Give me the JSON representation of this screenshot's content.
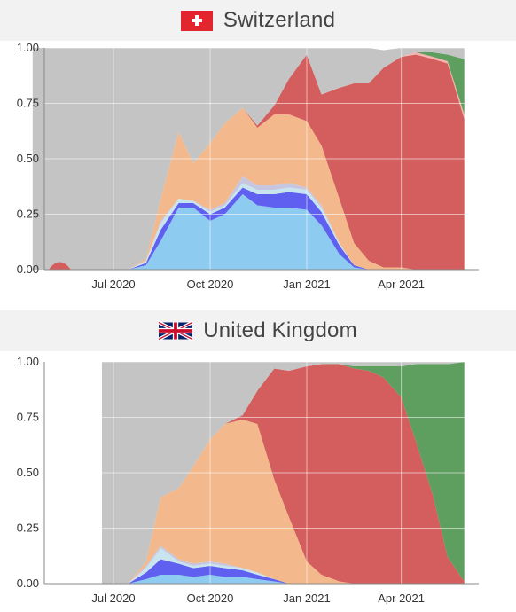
{
  "chart_data": [
    {
      "type": "area",
      "title": "Switzerland",
      "flag": "swiss-flag",
      "xlabel": "",
      "ylabel": "",
      "x": [
        "2020-04-15",
        "2020-05-01",
        "2020-05-15",
        "2020-06-01",
        "2020-06-15",
        "2020-07-01",
        "2020-07-15",
        "2020-08-01",
        "2020-08-15",
        "2020-09-01",
        "2020-09-15",
        "2020-10-01",
        "2020-10-15",
        "2020-11-01",
        "2020-11-15",
        "2020-12-01",
        "2020-12-15",
        "2021-01-01",
        "2021-01-15",
        "2021-02-01",
        "2021-02-15",
        "2021-03-01",
        "2021-03-15",
        "2021-04-01",
        "2021-04-15",
        "2021-05-01",
        "2021-05-15",
        "2021-05-31"
      ],
      "series": [
        {
          "color": "#8ecbf0",
          "values": [
            0.0,
            0.0,
            0.0,
            0.0,
            0.0,
            0.0,
            0.0,
            0.02,
            0.13,
            0.28,
            0.28,
            0.22,
            0.25,
            0.34,
            0.29,
            0.28,
            0.28,
            0.27,
            0.2,
            0.07,
            0.01,
            0.0,
            0.0,
            0.0,
            0.0,
            0.0,
            0.0,
            0.0
          ]
        },
        {
          "color": "#5f5ff0",
          "values": [
            0.0,
            0.0,
            0.0,
            0.0,
            0.0,
            0.0,
            0.0,
            0.01,
            0.05,
            0.02,
            0.02,
            0.03,
            0.03,
            0.03,
            0.05,
            0.06,
            0.07,
            0.07,
            0.06,
            0.04,
            0.01,
            0.0,
            0.0,
            0.0,
            0.0,
            0.0,
            0.0,
            0.0
          ]
        },
        {
          "color": "#c8e4ef",
          "values": [
            0.0,
            0.0,
            0.0,
            0.0,
            0.0,
            0.0,
            0.0,
            0.01,
            0.03,
            0.02,
            0.01,
            0.01,
            0.01,
            0.02,
            0.02,
            0.02,
            0.02,
            0.02,
            0.02,
            0.01,
            0.0,
            0.0,
            0.0,
            0.0,
            0.0,
            0.0,
            0.0,
            0.0
          ]
        },
        {
          "color": "#c6c6e0",
          "values": [
            0.0,
            0.0,
            0.0,
            0.0,
            0.0,
            0.0,
            0.0,
            0.0,
            0.01,
            0.0,
            0.0,
            0.01,
            0.01,
            0.03,
            0.02,
            0.02,
            0.02,
            0.01,
            0.01,
            0.0,
            0.0,
            0.0,
            0.0,
            0.0,
            0.0,
            0.0,
            0.0,
            0.0
          ]
        },
        {
          "color": "#f3b98c",
          "values": [
            0.0,
            0.0,
            0.0,
            0.0,
            0.0,
            0.0,
            0.0,
            0.01,
            0.1,
            0.3,
            0.17,
            0.3,
            0.36,
            0.31,
            0.26,
            0.32,
            0.31,
            0.3,
            0.27,
            0.2,
            0.1,
            0.04,
            0.01,
            0.01,
            0.0,
            0.0,
            0.0,
            0.0
          ]
        },
        {
          "color": "#d45d5e",
          "values": [
            0.0,
            0.0,
            0.0,
            0.0,
            0.0,
            0.0,
            0.0,
            0.0,
            0.0,
            0.0,
            0.0,
            0.0,
            0.0,
            0.0,
            0.01,
            0.04,
            0.16,
            0.3,
            0.23,
            0.5,
            0.72,
            0.8,
            0.9,
            0.95,
            0.97,
            0.95,
            0.93,
            0.68
          ]
        },
        {
          "color": "#f6b3ae",
          "values": [
            0.0,
            0.0,
            0.0,
            0.0,
            0.0,
            0.0,
            0.0,
            0.0,
            0.0,
            0.0,
            0.0,
            0.0,
            0.0,
            0.0,
            0.0,
            0.0,
            0.0,
            0.0,
            0.0,
            0.0,
            0.0,
            0.0,
            0.0,
            0.0,
            0.01,
            0.01,
            0.01,
            0.02
          ]
        },
        {
          "color": "#5e9e5e",
          "values": [
            0.0,
            0.0,
            0.0,
            0.0,
            0.0,
            0.0,
            0.0,
            0.0,
            0.0,
            0.0,
            0.0,
            0.0,
            0.0,
            0.0,
            0.0,
            0.0,
            0.0,
            0.0,
            0.0,
            0.0,
            0.0,
            0.0,
            0.0,
            0.0,
            0.0,
            0.02,
            0.03,
            0.25
          ]
        },
        {
          "color": "#c4c4c4",
          "values": [
            1.0,
            1.0,
            1.0,
            1.0,
            1.0,
            1.0,
            1.0,
            0.95,
            0.68,
            0.38,
            0.52,
            0.43,
            0.34,
            0.27,
            0.35,
            0.26,
            0.14,
            0.03,
            0.21,
            0.18,
            0.16,
            0.16,
            0.08,
            0.04,
            0.02,
            0.02,
            0.03,
            0.05
          ]
        }
      ],
      "ylim": [
        0,
        1
      ],
      "yticks": [
        "0.00",
        "0.25",
        "0.50",
        "0.75",
        "1.00"
      ],
      "xticks": [
        "Jul 2020",
        "Oct 2020",
        "Jan 2021",
        "Apr 2021"
      ],
      "grid": true
    },
    {
      "type": "area",
      "title": "United Kingdom",
      "flag": "uk-flag",
      "xlabel": "",
      "ylabel": "",
      "x": [
        "2020-06-20",
        "2020-07-01",
        "2020-07-15",
        "2020-08-01",
        "2020-08-15",
        "2020-09-01",
        "2020-09-15",
        "2020-10-01",
        "2020-10-15",
        "2020-11-01",
        "2020-11-15",
        "2020-12-01",
        "2020-12-15",
        "2021-01-01",
        "2021-01-15",
        "2021-02-01",
        "2021-02-15",
        "2021-03-01",
        "2021-03-15",
        "2021-04-01",
        "2021-04-15",
        "2021-05-01",
        "2021-05-15",
        "2021-05-31"
      ],
      "series": [
        {
          "color": "#8ecbf0",
          "values": [
            0.0,
            0.0,
            0.0,
            0.02,
            0.04,
            0.04,
            0.03,
            0.04,
            0.03,
            0.03,
            0.02,
            0.01,
            0.0,
            0.0,
            0.0,
            0.0,
            0.0,
            0.0,
            0.0,
            0.0,
            0.0,
            0.0,
            0.0,
            0.0
          ]
        },
        {
          "color": "#5f5ff0",
          "values": [
            0.0,
            0.0,
            0.0,
            0.03,
            0.07,
            0.05,
            0.04,
            0.04,
            0.04,
            0.03,
            0.02,
            0.01,
            0.0,
            0.0,
            0.0,
            0.0,
            0.0,
            0.0,
            0.0,
            0.0,
            0.0,
            0.0,
            0.0,
            0.0
          ]
        },
        {
          "color": "#c8e4ef",
          "values": [
            0.0,
            0.0,
            0.0,
            0.02,
            0.05,
            0.01,
            0.01,
            0.01,
            0.01,
            0.01,
            0.01,
            0.0,
            0.0,
            0.0,
            0.0,
            0.0,
            0.0,
            0.0,
            0.0,
            0.0,
            0.0,
            0.0,
            0.0,
            0.0
          ]
        },
        {
          "color": "#c6c6e0",
          "values": [
            0.0,
            0.0,
            0.0,
            0.01,
            0.01,
            0.01,
            0.01,
            0.01,
            0.01,
            0.0,
            0.0,
            0.0,
            0.0,
            0.0,
            0.0,
            0.0,
            0.0,
            0.0,
            0.0,
            0.0,
            0.0,
            0.0,
            0.0,
            0.0
          ]
        },
        {
          "color": "#f3b98c",
          "values": [
            0.0,
            0.0,
            0.0,
            0.02,
            0.22,
            0.32,
            0.44,
            0.55,
            0.63,
            0.67,
            0.67,
            0.45,
            0.3,
            0.1,
            0.04,
            0.01,
            0.0,
            0.0,
            0.0,
            0.0,
            0.0,
            0.0,
            0.0,
            0.0
          ]
        },
        {
          "color": "#d45d5e",
          "values": [
            0.0,
            0.0,
            0.0,
            0.0,
            0.0,
            0.0,
            0.0,
            0.0,
            0.0,
            0.02,
            0.15,
            0.5,
            0.66,
            0.88,
            0.95,
            0.98,
            0.97,
            0.96,
            0.93,
            0.84,
            0.64,
            0.4,
            0.12,
            0.01
          ]
        },
        {
          "color": "#5e9e5e",
          "values": [
            0.0,
            0.0,
            0.0,
            0.0,
            0.0,
            0.0,
            0.0,
            0.0,
            0.0,
            0.0,
            0.0,
            0.0,
            0.0,
            0.0,
            0.0,
            0.0,
            0.01,
            0.02,
            0.05,
            0.14,
            0.35,
            0.59,
            0.87,
            0.99
          ]
        },
        {
          "color": "#c4c4c4",
          "values": [
            1.0,
            1.0,
            1.0,
            0.9,
            0.61,
            0.57,
            0.47,
            0.35,
            0.28,
            0.24,
            0.15,
            0.03,
            0.04,
            0.02,
            0.01,
            0.01,
            0.02,
            0.02,
            0.02,
            0.02,
            0.01,
            0.01,
            0.01,
            0.0
          ]
        }
      ],
      "ylim": [
        0,
        1
      ],
      "yticks": [
        "0.00",
        "0.25",
        "0.50",
        "0.75",
        "1.00"
      ],
      "xticks": [
        "Jul 2020",
        "Oct 2020",
        "Jan 2021",
        "Apr 2021"
      ],
      "grid": true
    }
  ]
}
